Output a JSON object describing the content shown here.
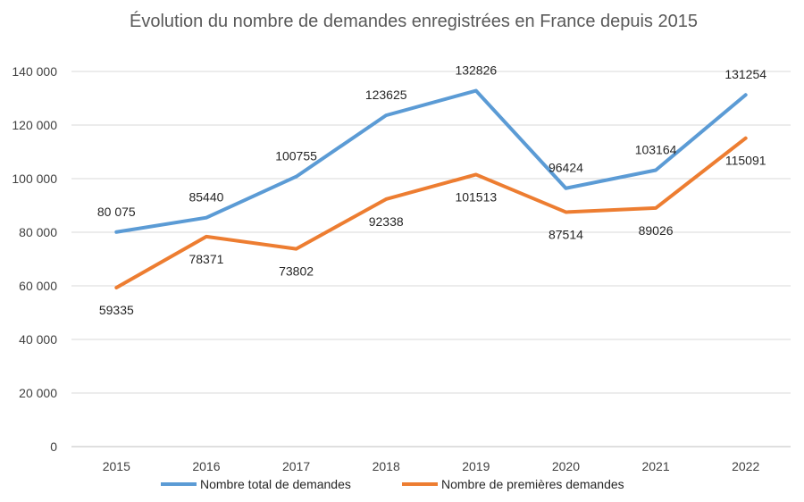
{
  "chart_data": {
    "type": "line",
    "title": "Évolution du nombre de demandes enregistrées en France depuis 2015",
    "categories": [
      "2015",
      "2016",
      "2017",
      "2018",
      "2019",
      "2020",
      "2021",
      "2022"
    ],
    "ylim": [
      0,
      140000
    ],
    "yticks": [
      0,
      20000,
      40000,
      60000,
      80000,
      100000,
      120000,
      140000
    ],
    "ytick_labels": [
      "0",
      "20 000",
      "40 000",
      "60 000",
      "80 000",
      "100 000",
      "120 000",
      "140 000"
    ],
    "grid": true,
    "legend_position": "bottom",
    "series": [
      {
        "name": "Nombre total de demandes",
        "color": "#5b9bd5",
        "values": [
          80075,
          85440,
          100755,
          123625,
          132826,
          96424,
          103164,
          131254
        ],
        "labels": [
          "80 075",
          "85440",
          "100755",
          "123625",
          "132826",
          "96424",
          "103164",
          "131254"
        ]
      },
      {
        "name": "Nombre de premières demandes",
        "color": "#ed7d31",
        "values": [
          59335,
          78371,
          73802,
          92338,
          101513,
          87514,
          89026,
          115091
        ],
        "labels": [
          "59335",
          "78371",
          "73802",
          "92338",
          "101513",
          "87514",
          "89026",
          "115091"
        ]
      }
    ]
  }
}
